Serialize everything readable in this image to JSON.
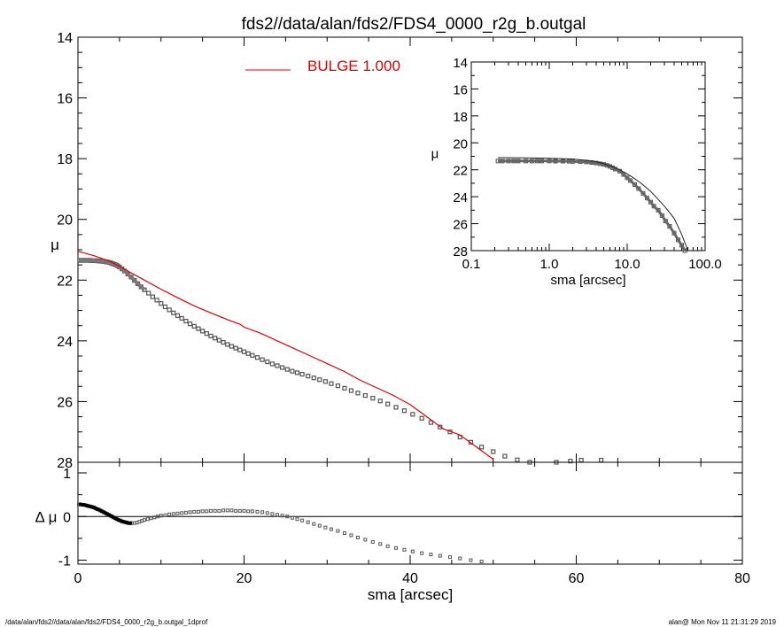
{
  "title": "fds2//data/alan/fds2/FDS4_0000_r2g_b.outgal",
  "footer": {
    "left": "/data/alan/fds2//data/alan/fds2/FDS4_0000_r2g_b.outgal_1dprof",
    "right": "alan@  Mon Nov 11 21:31:29 2019"
  },
  "colors": {
    "model": "#e00000",
    "data": "#555555",
    "axes": "#000000"
  },
  "chart_data": [
    {
      "id": "main",
      "type": "scatter",
      "xlabel": "",
      "ylabel": "μ",
      "xlim": [
        0,
        80
      ],
      "ylim": [
        28,
        14
      ],
      "y_inverted": true,
      "yticks": [
        14,
        16,
        18,
        20,
        22,
        24,
        26,
        28
      ],
      "legend": {
        "label": "BULGE  1.000",
        "position": "top-center"
      },
      "series": [
        {
          "kind": "points",
          "x": [
            0.2,
            0.4,
            0.6,
            0.8,
            1.0,
            1.2,
            1.4,
            1.6,
            1.8,
            2.0,
            2.2,
            2.4,
            2.6,
            2.8,
            3.0,
            3.2,
            3.4,
            3.6,
            3.8,
            4.0,
            4.2,
            4.4,
            4.6,
            4.8,
            5.0,
            5.3,
            5.6,
            6.0,
            6.4,
            6.8,
            7.2,
            7.6,
            8.0,
            8.5,
            9.0,
            9.5,
            10.0,
            10.5,
            11.0,
            11.5,
            12.0,
            12.5,
            13.0,
            13.5,
            14.0,
            14.5,
            15.0,
            15.5,
            16.0,
            16.5,
            17.0,
            17.5,
            18.0,
            18.5,
            19.0,
            19.5,
            20.0,
            20.5,
            21.0,
            21.6,
            22.2,
            22.8,
            23.4,
            24.0,
            24.6,
            25.2,
            25.8,
            26.4,
            27.0,
            27.7,
            28.4,
            29.1,
            29.8,
            30.5,
            31.3,
            32.1,
            32.9,
            33.7,
            34.6,
            35.5,
            36.4,
            37.3,
            38.3,
            39.3,
            40.3,
            41.4,
            42.5,
            43.6,
            44.8,
            46.0,
            47.3,
            48.6,
            50.0,
            51.4,
            52.9,
            54.4,
            56.0,
            57.6,
            59.3,
            60.6,
            63.0
          ],
          "y": [
            21.35,
            21.35,
            21.35,
            21.35,
            21.35,
            21.35,
            21.35,
            21.36,
            21.36,
            21.36,
            21.36,
            21.37,
            21.37,
            21.38,
            21.38,
            21.39,
            21.4,
            21.41,
            21.42,
            21.44,
            21.46,
            21.48,
            21.5,
            21.53,
            21.57,
            21.63,
            21.7,
            21.8,
            21.9,
            22.01,
            22.12,
            22.22,
            22.32,
            22.43,
            22.55,
            22.66,
            22.77,
            22.88,
            22.98,
            23.08,
            23.17,
            23.26,
            23.35,
            23.44,
            23.52,
            23.6,
            23.68,
            23.76,
            23.84,
            23.91,
            23.98,
            24.05,
            24.12,
            24.18,
            24.24,
            24.3,
            24.36,
            24.42,
            24.48,
            24.55,
            24.62,
            24.69,
            24.76,
            24.82,
            24.88,
            24.94,
            25.0,
            25.05,
            25.1,
            25.16,
            25.22,
            25.28,
            25.34,
            25.41,
            25.48,
            25.56,
            25.64,
            25.72,
            25.8,
            25.89,
            25.98,
            26.08,
            26.19,
            26.3,
            26.42,
            26.55,
            26.69,
            26.84,
            27.0,
            27.17,
            27.34,
            27.5,
            27.65,
            27.8,
            27.92,
            28.0,
            28.03,
            28.0,
            27.96,
            27.93,
            27.93
          ]
        },
        {
          "kind": "line",
          "name": "BULGE  1.000",
          "x": [
            0,
            2,
            4,
            6,
            8,
            10,
            12,
            14,
            16,
            18,
            19.5,
            20,
            22,
            24,
            26,
            28,
            30,
            32,
            34,
            36,
            38,
            40,
            42,
            44,
            46,
            48,
            50
          ],
          "y": [
            21.05,
            21.2,
            21.4,
            21.7,
            22.0,
            22.3,
            22.58,
            22.85,
            23.08,
            23.3,
            23.45,
            23.55,
            23.75,
            24.0,
            24.25,
            24.5,
            24.75,
            25.0,
            25.3,
            25.55,
            25.8,
            26.1,
            26.5,
            26.9,
            27.1,
            27.5,
            27.9
          ]
        }
      ]
    },
    {
      "id": "inset",
      "type": "scatter",
      "xlabel": "sma [arcsec]",
      "ylabel": "μ",
      "xscale": "log",
      "xlim": [
        0.1,
        100
      ],
      "xticks": [
        0.1,
        1.0,
        10.0,
        100.0
      ],
      "xticklabels": [
        "0.1",
        "1.0",
        "10.0",
        "100.0"
      ],
      "ylim": [
        28,
        14
      ],
      "yticks": [
        14,
        16,
        18,
        20,
        22,
        24,
        26,
        28
      ],
      "series": [
        {
          "kind": "points",
          "x": [
            0.22,
            0.25,
            0.3,
            0.35,
            0.4,
            0.5,
            0.6,
            0.7,
            0.8,
            1.0,
            1.2,
            1.5,
            1.8,
            2.0,
            2.5,
            3.0,
            3.5,
            4.0,
            4.5,
            5.0,
            5.5,
            6.0,
            6.5,
            7.0,
            8.0,
            9.0,
            10.0,
            11.0,
            12.5,
            14.0,
            16.0,
            18.0,
            20.0,
            22.0,
            25.0,
            28.0,
            31.0,
            35.0,
            40.0,
            45.0,
            50.0,
            55.0,
            60.0
          ],
          "y": [
            21.35,
            21.35,
            21.35,
            21.35,
            21.35,
            21.35,
            21.35,
            21.35,
            21.35,
            21.35,
            21.36,
            21.36,
            21.37,
            21.38,
            21.4,
            21.42,
            21.46,
            21.5,
            21.55,
            21.6,
            21.67,
            21.75,
            21.85,
            21.95,
            22.1,
            22.35,
            22.6,
            22.8,
            23.1,
            23.4,
            23.75,
            24.1,
            24.4,
            24.7,
            25.0,
            25.4,
            25.8,
            26.2,
            26.7,
            27.2,
            27.6,
            28.0,
            28.3
          ]
        },
        {
          "kind": "line",
          "x": [
            0.22,
            0.5,
            1.0,
            2.0,
            3.0,
            4.0,
            5.0,
            6.0,
            7.0,
            8.0,
            10.0,
            12.0,
            15.0,
            20.0,
            25.0,
            30.0,
            40.0,
            50.0,
            60.0
          ],
          "y": [
            21.1,
            21.12,
            21.15,
            21.2,
            21.3,
            21.4,
            21.55,
            21.7,
            21.85,
            22.0,
            22.3,
            22.6,
            23.0,
            23.6,
            24.2,
            24.7,
            25.6,
            26.8,
            28.0
          ]
        }
      ]
    },
    {
      "id": "residual",
      "type": "scatter",
      "xlabel": "sma [arcsec]",
      "ylabel": "Δ μ",
      "xlim": [
        0,
        80
      ],
      "xticks": [
        0,
        20,
        40,
        60,
        80
      ],
      "ylim": [
        -1.05,
        1.0
      ],
      "yticks": [
        -1,
        0,
        1
      ],
      "zero_line": true,
      "series": [
        {
          "kind": "points",
          "x": [
            0.1,
            0.3,
            0.5,
            0.7,
            0.9,
            1.1,
            1.3,
            1.5,
            1.7,
            1.9,
            2.1,
            2.3,
            2.5,
            2.7,
            2.9,
            3.1,
            3.3,
            3.5,
            3.7,
            3.9,
            4.1,
            4.3,
            4.5,
            4.7,
            4.9,
            5.1,
            5.3,
            5.5,
            5.7,
            5.9,
            6.1,
            6.3,
            6.5,
            6.8,
            7.1,
            7.4,
            7.7,
            8.0,
            8.4,
            8.8,
            9.2,
            9.6,
            10.0,
            10.5,
            11.0,
            11.5,
            12.0,
            12.5,
            13.0,
            13.5,
            14.0,
            14.5,
            15.0,
            15.5,
            16.0,
            16.5,
            17.0,
            17.5,
            18.0,
            18.5,
            19.0,
            19.5,
            20.0,
            20.5,
            21.0,
            21.6,
            22.2,
            22.8,
            23.4,
            24.0,
            24.6,
            25.2,
            25.8,
            26.4,
            27.0,
            27.7,
            28.4,
            29.1,
            29.8,
            30.5,
            31.3,
            32.1,
            32.9,
            33.7,
            34.6,
            35.5,
            36.4,
            37.3,
            38.3,
            39.3,
            40.3,
            41.4,
            42.5,
            43.6,
            44.8,
            46.0,
            47.3,
            48.6
          ],
          "y": [
            0.28,
            0.28,
            0.27,
            0.27,
            0.26,
            0.25,
            0.24,
            0.23,
            0.22,
            0.21,
            0.19,
            0.17,
            0.16,
            0.14,
            0.12,
            0.1,
            0.08,
            0.06,
            0.04,
            0.02,
            0.0,
            -0.02,
            -0.04,
            -0.06,
            -0.08,
            -0.09,
            -0.11,
            -0.12,
            -0.13,
            -0.14,
            -0.15,
            -0.15,
            -0.15,
            -0.15,
            -0.14,
            -0.12,
            -0.1,
            -0.08,
            -0.06,
            -0.04,
            -0.02,
            0.0,
            0.02,
            0.03,
            0.05,
            0.06,
            0.07,
            0.08,
            0.09,
            0.1,
            0.11,
            0.11,
            0.12,
            0.12,
            0.13,
            0.13,
            0.13,
            0.14,
            0.14,
            0.14,
            0.13,
            0.13,
            0.13,
            0.12,
            0.12,
            0.11,
            0.1,
            0.08,
            0.06,
            0.04,
            0.02,
            0.0,
            -0.03,
            -0.06,
            -0.09,
            -0.13,
            -0.17,
            -0.21,
            -0.25,
            -0.29,
            -0.33,
            -0.38,
            -0.43,
            -0.48,
            -0.53,
            -0.58,
            -0.63,
            -0.68,
            -0.72,
            -0.76,
            -0.8,
            -0.84,
            -0.87,
            -0.9,
            -0.93,
            -0.96,
            -1.0,
            -1.03
          ]
        }
      ]
    }
  ]
}
